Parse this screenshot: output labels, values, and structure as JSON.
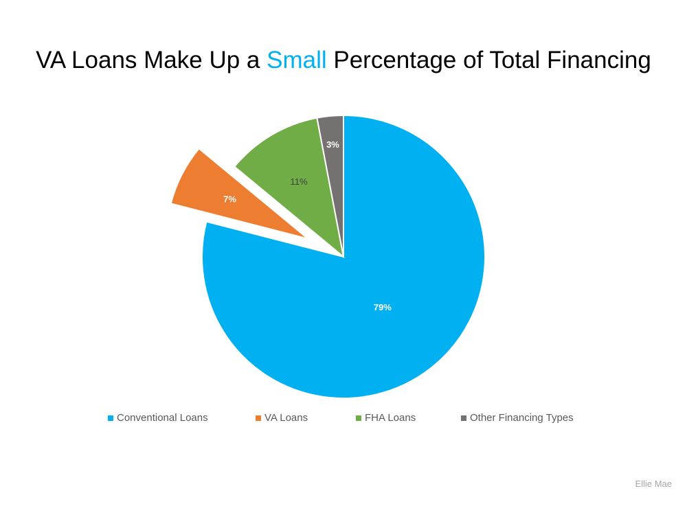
{
  "chart_data": {
    "type": "pie",
    "title_parts": [
      "VA Loans Make Up a ",
      "Small",
      " Percentage of Total Financing"
    ],
    "slices": [
      {
        "name": "Conventional Loans",
        "value": 79,
        "label": "79%",
        "color": "#00B0F0",
        "label_color": "#ffffff",
        "exploded": false
      },
      {
        "name": "VA Loans",
        "value": 7,
        "label": "7%",
        "color": "#ED7D31",
        "label_color": "#ffffff",
        "exploded": true
      },
      {
        "name": "FHA Loans",
        "value": 11,
        "label": "11%",
        "color": "#70AD47",
        "label_color": "#404040",
        "exploded": false
      },
      {
        "name": "Other Financing Types",
        "value": 3,
        "label": "3%",
        "color": "#767171",
        "label_color": "#ffffff",
        "exploded": false
      }
    ],
    "legend_position": "bottom",
    "title_highlight_color": "#00B0F0"
  },
  "source": "Ellie Mae"
}
